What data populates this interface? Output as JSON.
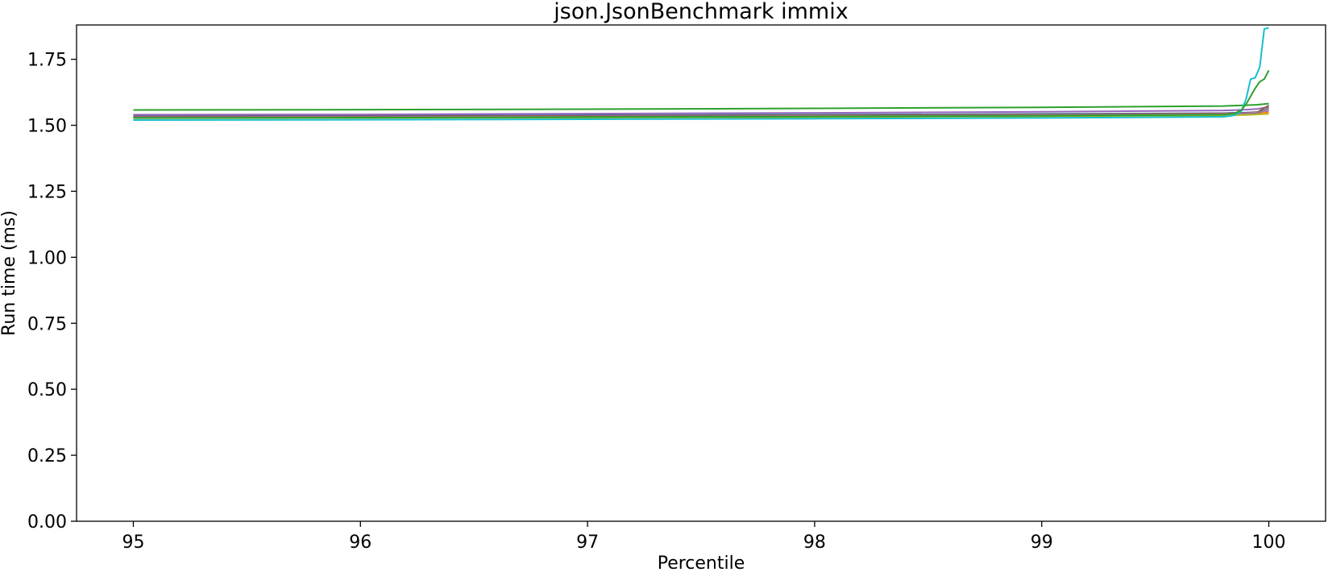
{
  "chart_data": {
    "type": "line",
    "title": "json.JsonBenchmark immix",
    "xlabel": "Percentile",
    "ylabel": "Run time (ms)",
    "xlim": [
      94.75,
      100.25
    ],
    "ylim": [
      0.0,
      1.88
    ],
    "xticks": [
      95,
      96,
      97,
      98,
      99,
      100
    ],
    "yticks": [
      "0.00",
      "0.25",
      "0.50",
      "0.75",
      "1.00",
      "1.25",
      "1.50",
      "1.75"
    ],
    "grid": false,
    "legend": "none",
    "series": [
      {
        "color": "#1f77b4",
        "x": [
          95,
          96,
          97,
          98,
          99,
          99.8,
          99.9,
          99.95,
          100
        ],
        "y": [
          1.535,
          1.536,
          1.538,
          1.54,
          1.543,
          1.546,
          1.548,
          1.55,
          1.555
        ]
      },
      {
        "color": "#ff7f0e",
        "x": [
          95,
          96,
          97,
          98,
          99,
          99.8,
          99.9,
          99.95,
          100
        ],
        "y": [
          1.531,
          1.532,
          1.533,
          1.535,
          1.538,
          1.541,
          1.543,
          1.545,
          1.548
        ]
      },
      {
        "color": "#2ca02c",
        "x": [
          95,
          96,
          97,
          98,
          99,
          99.8,
          99.9,
          99.95,
          100
        ],
        "y": [
          1.558,
          1.559,
          1.561,
          1.564,
          1.568,
          1.573,
          1.576,
          1.578,
          1.582
        ]
      },
      {
        "color": "#d62728",
        "x": [
          95,
          96,
          97,
          98,
          99,
          99.8,
          99.9,
          99.95,
          100
        ],
        "y": [
          1.532,
          1.533,
          1.535,
          1.537,
          1.54,
          1.543,
          1.545,
          1.548,
          1.56
        ]
      },
      {
        "color": "#9467bd",
        "x": [
          95,
          96,
          97,
          98,
          99,
          99.8,
          99.9,
          99.95,
          100
        ],
        "y": [
          1.54,
          1.541,
          1.544,
          1.547,
          1.551,
          1.556,
          1.559,
          1.562,
          1.57
        ]
      },
      {
        "color": "#8c564b",
        "x": [
          95,
          96,
          97,
          98,
          99,
          99.8,
          99.9,
          99.95,
          100
        ],
        "y": [
          1.533,
          1.534,
          1.536,
          1.538,
          1.541,
          1.545,
          1.547,
          1.55,
          1.575
        ]
      },
      {
        "color": "#e377c2",
        "x": [
          95,
          96,
          97,
          98,
          99,
          99.8,
          99.9,
          99.95,
          100
        ],
        "y": [
          1.53,
          1.531,
          1.533,
          1.535,
          1.538,
          1.542,
          1.545,
          1.548,
          1.558
        ]
      },
      {
        "color": "#7f7f7f",
        "x": [
          95,
          96,
          97,
          98,
          99,
          99.8,
          99.9,
          99.95,
          100
        ],
        "y": [
          1.529,
          1.53,
          1.532,
          1.534,
          1.537,
          1.541,
          1.543,
          1.546,
          1.565
        ]
      },
      {
        "color": "#bcbd22",
        "x": [
          95,
          96,
          97,
          98,
          99,
          99.8,
          99.9,
          99.95,
          100
        ],
        "y": [
          1.527,
          1.528,
          1.529,
          1.531,
          1.534,
          1.537,
          1.539,
          1.541,
          1.543
        ]
      },
      {
        "color": "#17becf",
        "x": [
          95,
          96,
          97,
          98,
          99,
          99.8,
          99.85,
          99.88,
          99.9,
          99.92,
          99.94,
          99.96,
          99.98,
          100
        ],
        "y": [
          1.52,
          1.521,
          1.523,
          1.525,
          1.528,
          1.532,
          1.538,
          1.555,
          1.6,
          1.675,
          1.68,
          1.72,
          1.865,
          1.87
        ]
      },
      {
        "color": "#2ca02c",
        "x": [
          95,
          96,
          97,
          98,
          99,
          99.8,
          99.85,
          99.88,
          99.9,
          99.92,
          99.94,
          99.96,
          99.98,
          100
        ],
        "y": [
          1.528,
          1.529,
          1.531,
          1.533,
          1.536,
          1.54,
          1.545,
          1.558,
          1.58,
          1.61,
          1.64,
          1.665,
          1.675,
          1.708
        ]
      }
    ]
  }
}
